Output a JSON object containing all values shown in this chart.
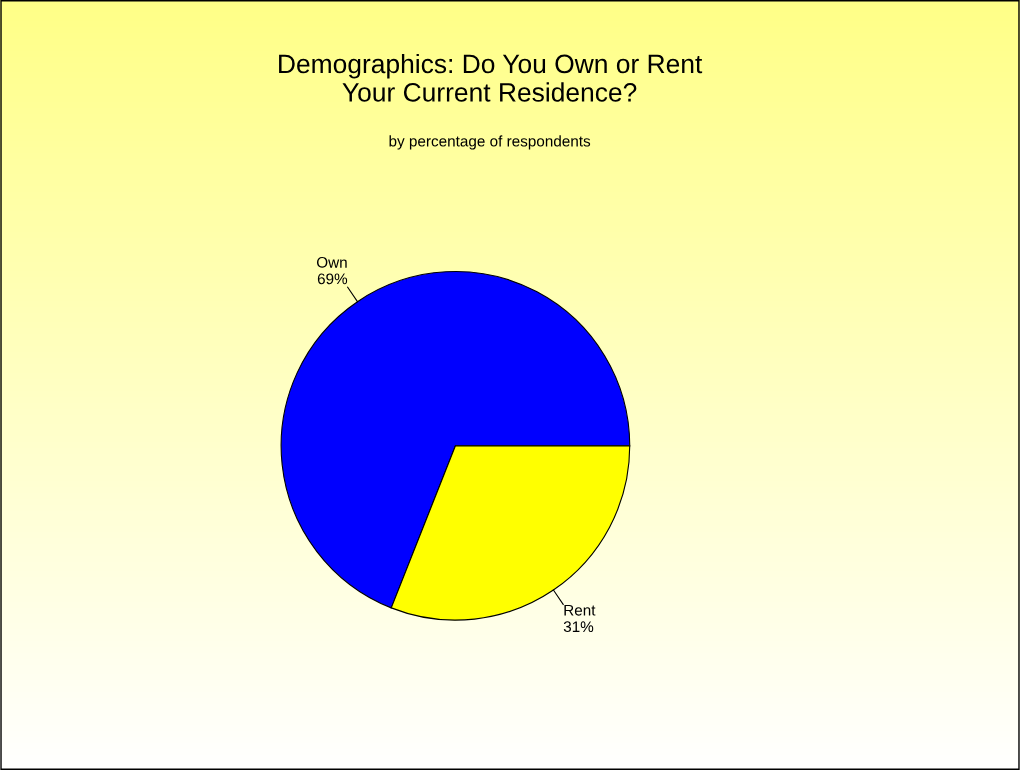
{
  "chart_data": {
    "type": "pie",
    "title": "Demographics: Do You Own or Rent\nYour Current Residence?",
    "subtitle": "by percentage of respondents",
    "categories": [
      "Own",
      "Rent"
    ],
    "values": [
      69,
      31
    ],
    "colors": [
      "#0000ff",
      "#ffff00"
    ],
    "value_labels": [
      "69%",
      "31%"
    ],
    "legend": false
  }
}
